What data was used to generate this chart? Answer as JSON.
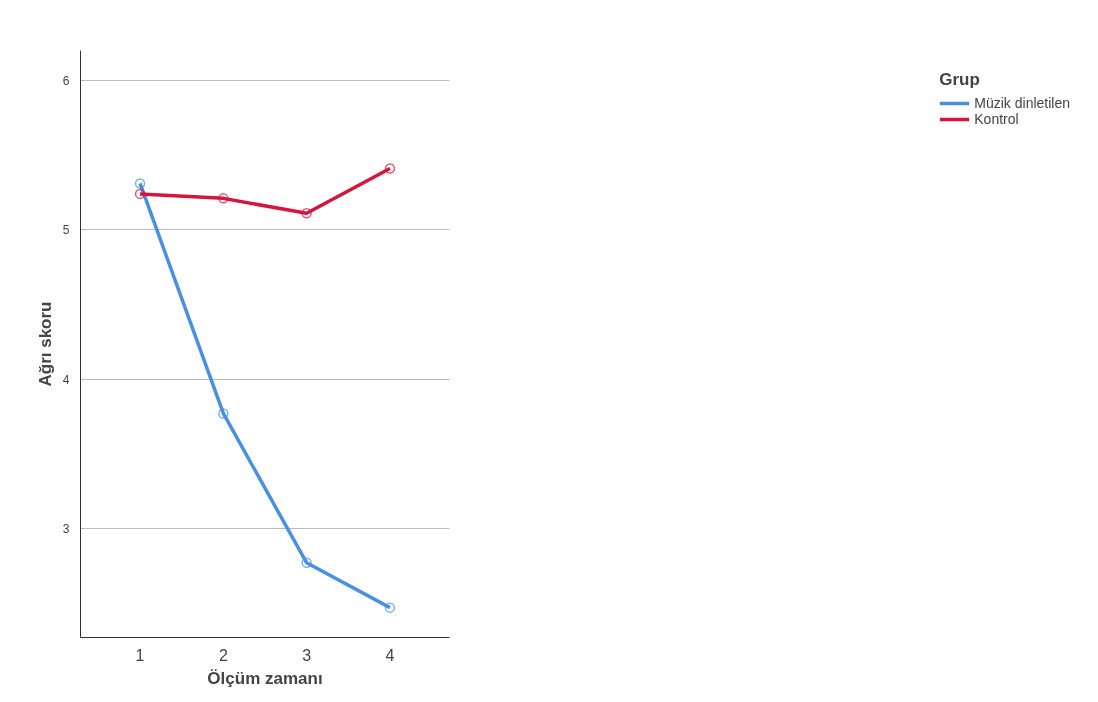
{
  "chart_data": {
    "type": "line",
    "xlabel": "Ölçüm zamanı",
    "ylabel": "Ağrı skoru",
    "legend_title": "Grup",
    "x": [
      1,
      2,
      3,
      4
    ],
    "series": [
      {
        "name": "Müzik dinletilen",
        "color": "#4a90e2",
        "values": [
          5.31,
          3.77,
          2.77,
          2.47
        ]
      },
      {
        "name": "Kontrol",
        "color": "#d4163c",
        "values": [
          5.24,
          5.21,
          5.11,
          5.41
        ]
      }
    ],
    "xlim": [
      0.285,
      4.715
    ],
    "ylim": [
      2.27,
      6.2
    ],
    "xticks": [
      1,
      2,
      3,
      4
    ],
    "yticks": [
      3,
      4,
      5,
      6
    ],
    "grid": "y",
    "legend": "right",
    "marker": "circle",
    "line_style": "solid"
  }
}
